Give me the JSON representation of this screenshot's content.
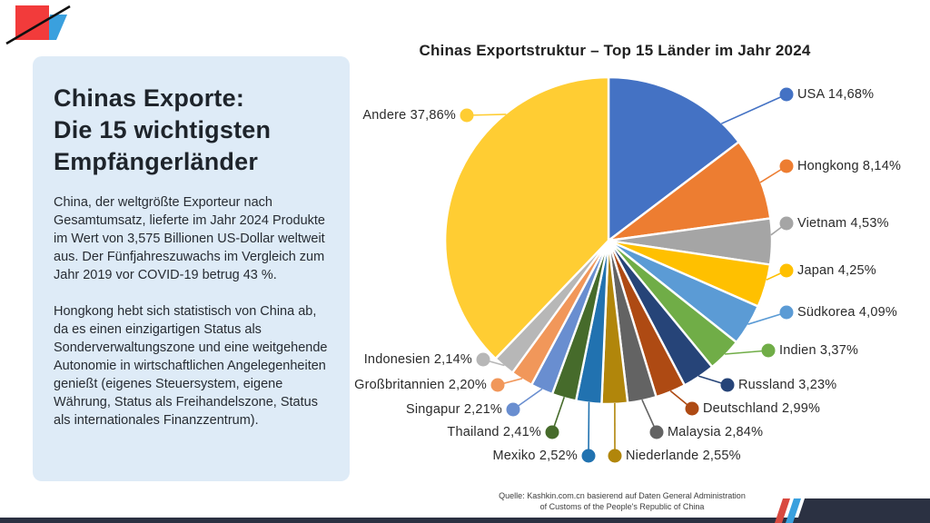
{
  "info_panel": {
    "title": "Chinas Exporte:\nDie 15 wichtigsten\nEmpfängerländer",
    "paragraph1": "China, der weltgrößte Exporteur nach Gesamtumsatz, lieferte im Jahr 2024 Produkte im Wert von 3,575 Billionen US-Dollar weltweit aus. Der Fünfjahreszuwachs im Vergleich zum Jahr 2019 vor COVID-19 betrug 43 %.",
    "paragraph2": "Hongkong hebt sich statistisch von China ab, da es einen einzigartigen Status als Sonderverwaltungszone und eine weitgehende Autonomie in wirtschaftlichen Angelegenheiten genießt (eigenes Steuersystem, eigene Währung, Status als Freihandelszone, Status als internationales Finanzzentrum).",
    "panel_bg_color": "#DEEBF7"
  },
  "chart_data": {
    "type": "pie",
    "title": "Chinas Exportstruktur – Top 15 Länder im Jahr 2024",
    "start_angle_deg": 0,
    "direction": "clockwise",
    "value_unit": "%",
    "items": [
      {
        "name": "USA",
        "value": 14.68,
        "display": "USA 14,68%",
        "color": "#4472C4"
      },
      {
        "name": "Hongkong",
        "value": 8.14,
        "display": "Hongkong 8,14%",
        "color": "#ED7D31"
      },
      {
        "name": "Vietnam",
        "value": 4.53,
        "display": "Vietnam 4,53%",
        "color": "#A5A5A5"
      },
      {
        "name": "Japan",
        "value": 4.25,
        "display": "Japan 4,25%",
        "color": "#FFC000"
      },
      {
        "name": "Südkorea",
        "value": 4.09,
        "display": "Südkorea 4,09%",
        "color": "#5B9BD5"
      },
      {
        "name": "Indien",
        "value": 3.37,
        "display": "Indien 3,37%",
        "color": "#70AD47"
      },
      {
        "name": "Russland",
        "value": 3.23,
        "display": "Russland 3,23%",
        "color": "#264478"
      },
      {
        "name": "Deutschland",
        "value": 2.99,
        "display": "Deutschland 2,99%",
        "color": "#AE4A13"
      },
      {
        "name": "Malaysia",
        "value": 2.84,
        "display": "Malaysia 2,84%",
        "color": "#636363"
      },
      {
        "name": "Niederlande",
        "value": 2.55,
        "display": "Niederlande 2,55%",
        "color": "#B1860B"
      },
      {
        "name": "Mexiko",
        "value": 2.52,
        "display": "Mexiko 2,52%",
        "color": "#2172B0"
      },
      {
        "name": "Thailand",
        "value": 2.41,
        "display": "Thailand 2,41%",
        "color": "#466B2B"
      },
      {
        "name": "Singapur",
        "value": 2.21,
        "display": "Singapur 2,21%",
        "color": "#698ED0"
      },
      {
        "name": "Großbritannien",
        "value": 2.2,
        "display": "Großbritannien 2,20%",
        "color": "#F1975A"
      },
      {
        "name": "Indonesien",
        "value": 2.14,
        "display": "Indonesien 2,14%",
        "color": "#B7B7B7"
      },
      {
        "name": "Andere",
        "value": 37.86,
        "display": "Andere 37,86%",
        "color": "#FFCD33"
      }
    ]
  },
  "footer": {
    "source_line1": "Quelle: Kashkin.com.cn basierend auf Daten General Administration",
    "source_line2": "of Customs of the People's Republic of China"
  },
  "brand": {
    "red": "#F23B3B",
    "blue": "#3AA0DE",
    "navy": "#2B3142",
    "stripe_red": "#D9493F"
  }
}
